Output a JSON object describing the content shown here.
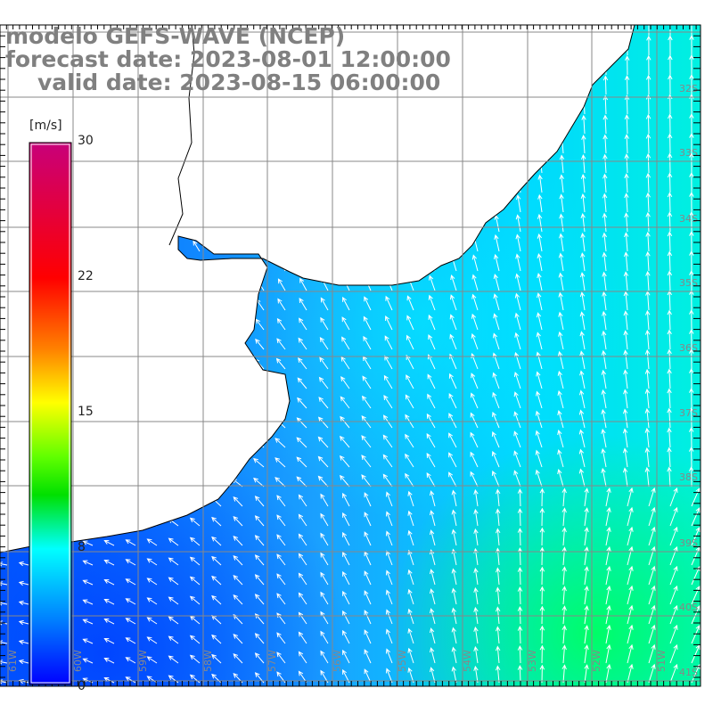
{
  "title": {
    "line1": "modelo GEFS-WAVE (NCEP)",
    "line2": "forecast date: 2023-08-01 12:00:00",
    "line3": "valid date: 2023-08-15 06:00:00"
  },
  "colorbar": {
    "unit": "[m/s]",
    "ticks": [
      "30",
      "22",
      "15",
      "8",
      "0"
    ],
    "colors": [
      "#c8007a",
      "#ff0000",
      "#ff8000",
      "#ffff00",
      "#00e000",
      "#00ffff",
      "#0000ff"
    ]
  },
  "axes": {
    "lon_labels": [
      "61W",
      "60W",
      "59W",
      "58W",
      "57W",
      "56W",
      "55W",
      "54W",
      "53W",
      "52W",
      "51W"
    ],
    "lat_labels": [
      "32S",
      "33S",
      "34S",
      "35S",
      "36S",
      "37S",
      "38S",
      "39S",
      "40S",
      "41S"
    ]
  },
  "field_colors": {
    "deep": "#0050ff",
    "mid": "#1a9cff",
    "cyan": "#00e6ff",
    "green": "#00ff70"
  }
}
